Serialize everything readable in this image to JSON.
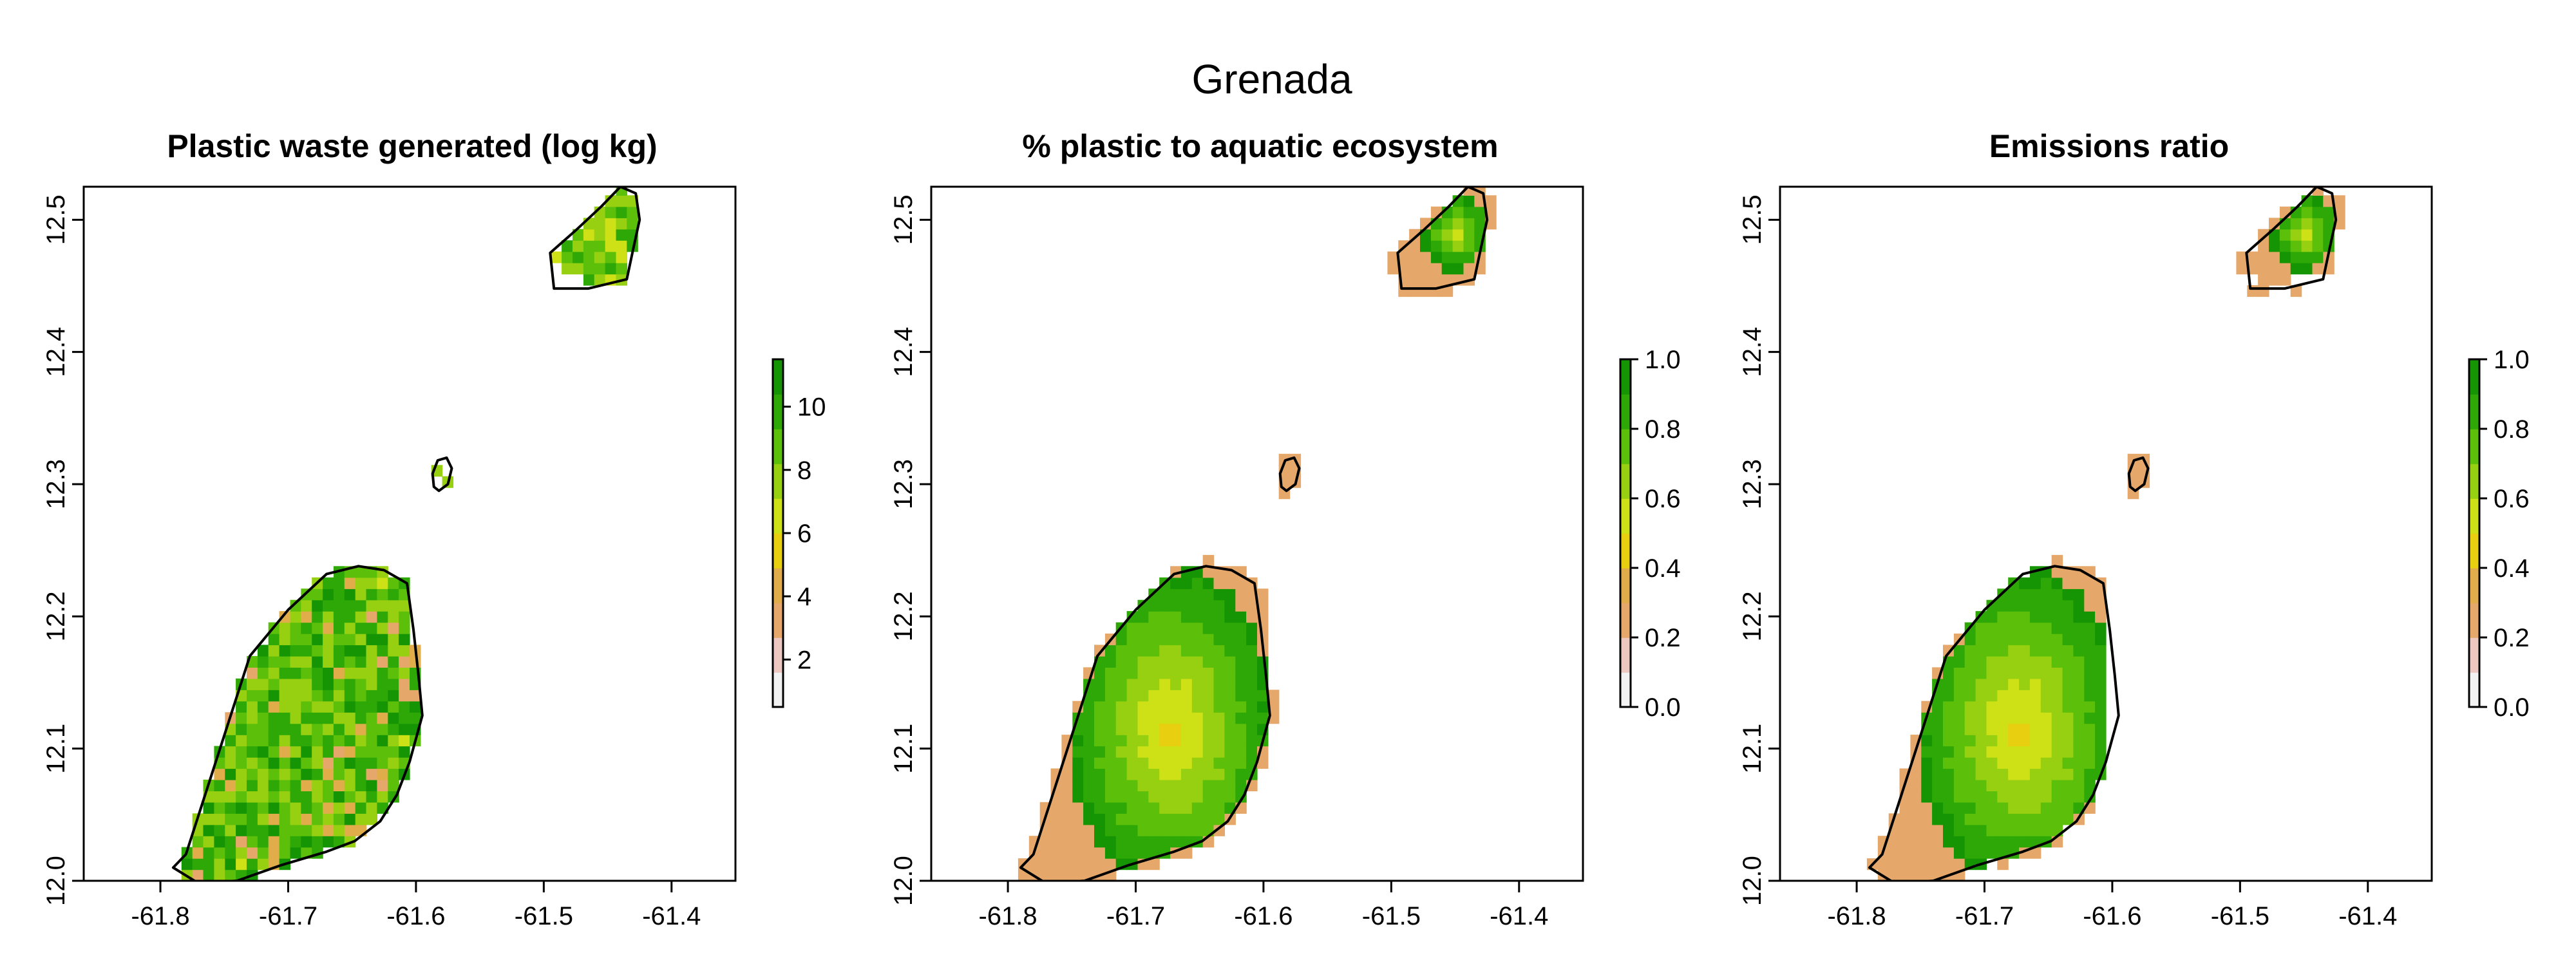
{
  "figure": {
    "title": "Grenada"
  },
  "panels": [
    {
      "id": "waste",
      "title": "Plastic waste generated (log kg)",
      "legend": {
        "min": 0.5,
        "max": 11.5,
        "ticks": [
          "2",
          "4",
          "6",
          "8",
          "10"
        ],
        "tick_values": [
          2,
          4,
          6,
          8,
          10
        ]
      }
    },
    {
      "id": "pct",
      "title": "% plastic to aquatic ecosystem",
      "legend": {
        "min": 0,
        "max": 1,
        "ticks": [
          "0.0",
          "0.2",
          "0.4",
          "0.6",
          "0.8",
          "1.0"
        ],
        "tick_values": [
          0,
          0.2,
          0.4,
          0.6,
          0.8,
          1.0
        ]
      }
    },
    {
      "id": "ratio",
      "title": "Emissions ratio",
      "legend": {
        "min": 0,
        "max": 1,
        "ticks": [
          "0.0",
          "0.2",
          "0.4",
          "0.6",
          "0.8",
          "1.0"
        ],
        "tick_values": [
          0,
          0.2,
          0.4,
          0.6,
          0.8,
          1.0
        ]
      }
    }
  ],
  "axes": {
    "x_range": [
      -61.86,
      -61.35
    ],
    "y_range": [
      12.0,
      12.525
    ],
    "x_ticks": [
      "-61.8",
      "-61.7",
      "-61.6",
      "-61.5",
      "-61.4"
    ],
    "x_tick_values": [
      -61.8,
      -61.7,
      -61.6,
      -61.5,
      -61.4
    ],
    "y_ticks": [
      "12.0",
      "12.1",
      "12.2",
      "12.3",
      "12.4",
      "12.5"
    ],
    "y_tick_values": [
      12.0,
      12.1,
      12.2,
      12.3,
      12.4,
      12.5
    ]
  },
  "colors": {
    "palette": [
      "#f2f2f2",
      "#edc8c0",
      "#e6a86a",
      "#e0ad4a",
      "#e8cf10",
      "#cde116",
      "#97d010",
      "#5cbf0a",
      "#2ea806",
      "#169504"
    ],
    "outline": "#000000"
  },
  "outlines": {
    "grenada": [
      [
        -61.79,
        12.01
      ],
      [
        -61.78,
        12.02
      ],
      [
        -61.77,
        12.05
      ],
      [
        -61.75,
        12.11
      ],
      [
        -61.73,
        12.17
      ],
      [
        -61.7,
        12.205
      ],
      [
        -61.67,
        12.232
      ],
      [
        -61.645,
        12.238
      ],
      [
        -61.625,
        12.235
      ],
      [
        -61.607,
        12.225
      ],
      [
        -61.602,
        12.19
      ],
      [
        -61.598,
        12.155
      ],
      [
        -61.595,
        12.125
      ],
      [
        -61.605,
        12.09
      ],
      [
        -61.615,
        12.065
      ],
      [
        -61.628,
        12.045
      ],
      [
        -61.648,
        12.03
      ],
      [
        -61.67,
        12.022
      ],
      [
        -61.705,
        12.012
      ],
      [
        -61.74,
        12.0
      ],
      [
        -61.77,
        11.998
      ],
      [
        -61.79,
        12.01
      ]
    ],
    "carriacou": [
      [
        -61.492,
        12.448
      ],
      [
        -61.495,
        12.475
      ],
      [
        -61.475,
        12.492
      ],
      [
        -61.455,
        12.51
      ],
      [
        -61.44,
        12.525
      ],
      [
        -61.428,
        12.52
      ],
      [
        -61.425,
        12.5
      ],
      [
        -61.43,
        12.478
      ],
      [
        -61.435,
        12.455
      ],
      [
        -61.465,
        12.448
      ],
      [
        -61.492,
        12.448
      ]
    ],
    "ronde": [
      [
        -61.586,
        12.298
      ],
      [
        -61.582,
        12.295
      ],
      [
        -61.575,
        12.3
      ],
      [
        -61.572,
        12.312
      ],
      [
        -61.576,
        12.32
      ],
      [
        -61.583,
        12.318
      ],
      [
        -61.587,
        12.308
      ],
      [
        -61.586,
        12.298
      ]
    ]
  }
}
